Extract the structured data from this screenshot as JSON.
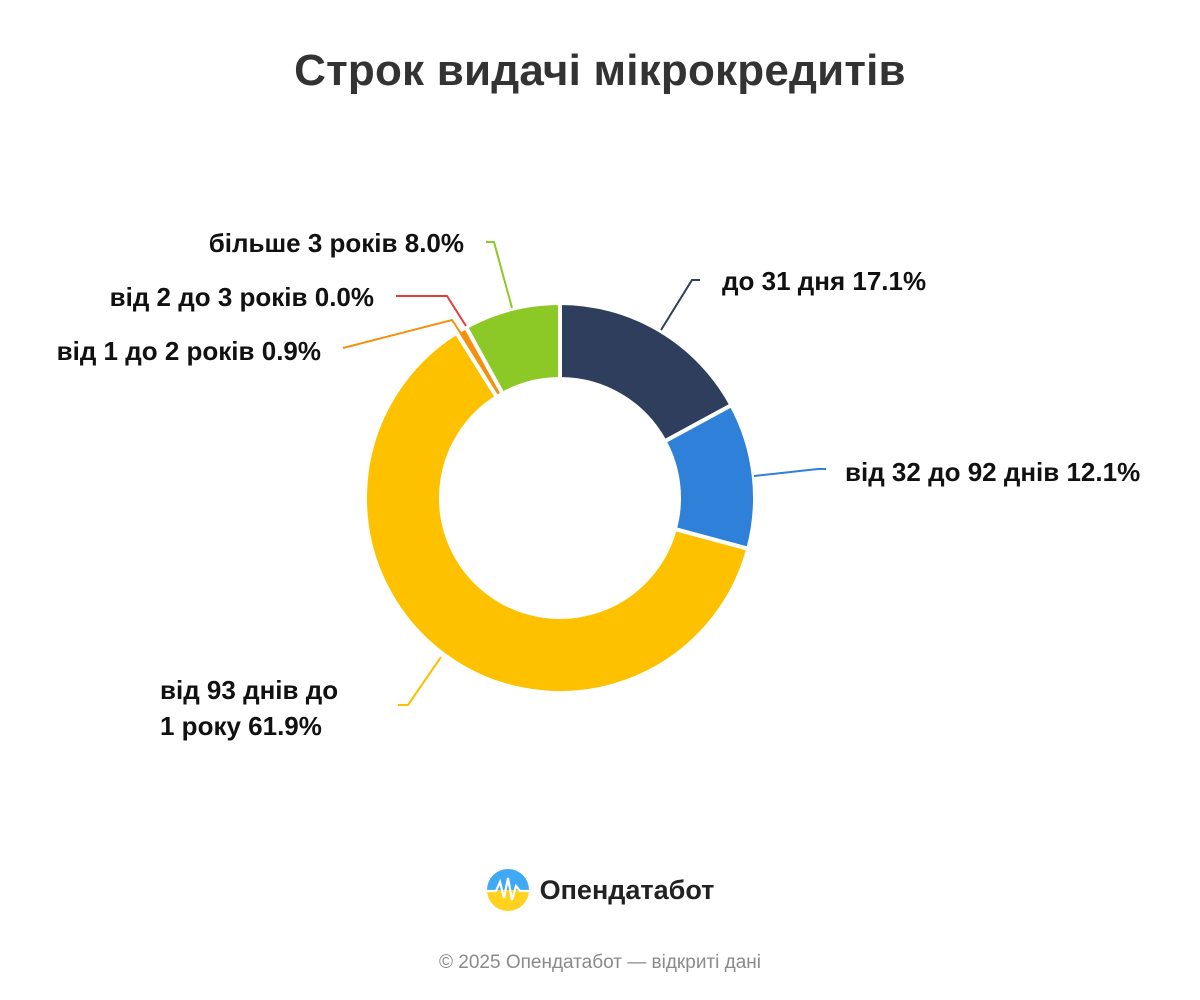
{
  "chart_data": {
    "type": "pie",
    "variant": "donut",
    "title": "Строк видачі мікрокредитів",
    "categories": [
      "до 31 дня",
      "від 32 до 92 днів",
      "від 93 днів до 1 року",
      "від 1 до 2 років",
      "від 2 до 3 років",
      "більше 3 років"
    ],
    "values": [
      17.1,
      12.1,
      61.9,
      0.9,
      0.0,
      8.0
    ],
    "labels": [
      "до 31 дня 17.1%",
      "від 32 до 92 днів 12.1%",
      "від 93 днів до 1 року 61.9%",
      "від 1 до 2 років 0.9%",
      "від 2 до 3 років 0.0%",
      "більше 3 років 8.0%"
    ],
    "colors": [
      "#2e3e5c",
      "#2f80d9",
      "#fdc100",
      "#f5900f",
      "#e0403a",
      "#8cc926"
    ],
    "legend": "none"
  },
  "brand": {
    "name": "Опендатабот",
    "logo_icon": "opendatabot-logo-icon"
  },
  "footer": {
    "copyright": "© 2025 Опендатабот — відкриті дані"
  }
}
